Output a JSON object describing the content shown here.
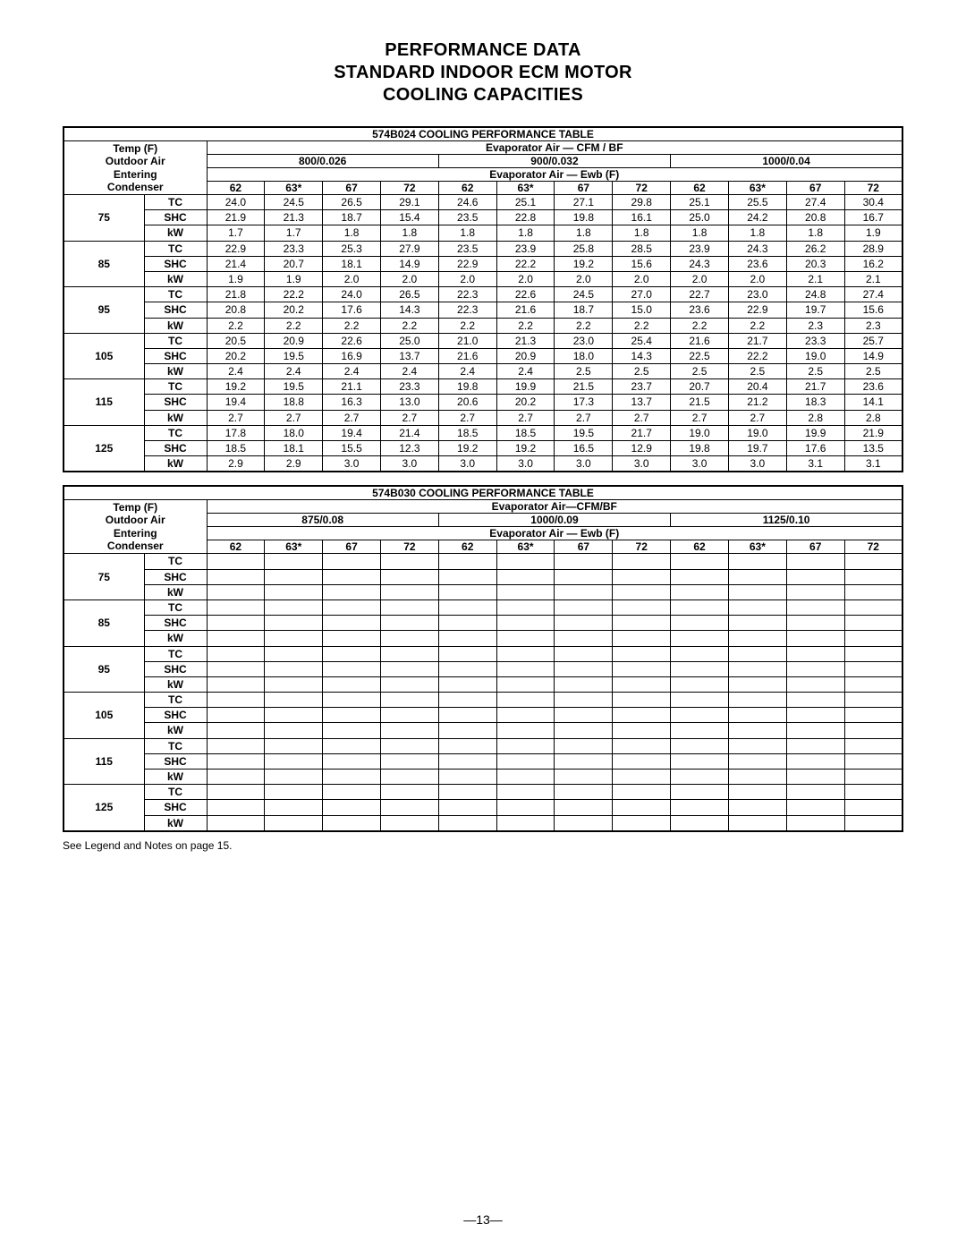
{
  "title_lines": [
    "PERFORMANCE DATA",
    "STANDARD INDOOR ECM MOTOR",
    "COOLING CAPACITIES"
  ],
  "footnote": "See Legend and Notes on page 15.",
  "page_number": "—13—",
  "metrics": [
    "TC",
    "SHC",
    "kW"
  ],
  "ewb_cols": [
    "62",
    "63*",
    "67",
    "72"
  ],
  "header_labels": {
    "temp_block": "Temp (F)\nOutdoor Air\nEntering\nCondenser",
    "evap_cfm": "Evaporator Air — CFM / BF",
    "evap_cfm2": "Evaporator Air—CFM/BF",
    "evap_ewb": "Evaporator Air — Ewb (F)"
  },
  "table1": {
    "title": "574B024 COOLING PERFORMANCE TABLE",
    "cfm": [
      "800/0.026",
      "900/0.032",
      "1000/0.04"
    ],
    "temps": [
      "75",
      "85",
      "95",
      "105",
      "115",
      "125"
    ],
    "data": {
      "75": {
        "TC": [
          "24.0",
          "24.5",
          "26.5",
          "29.1",
          "24.6",
          "25.1",
          "27.1",
          "29.8",
          "25.1",
          "25.5",
          "27.4",
          "30.4"
        ],
        "SHC": [
          "21.9",
          "21.3",
          "18.7",
          "15.4",
          "23.5",
          "22.8",
          "19.8",
          "16.1",
          "25.0",
          "24.2",
          "20.8",
          "16.7"
        ],
        "kW": [
          "1.7",
          "1.7",
          "1.8",
          "1.8",
          "1.8",
          "1.8",
          "1.8",
          "1.8",
          "1.8",
          "1.8",
          "1.8",
          "1.9"
        ]
      },
      "85": {
        "TC": [
          "22.9",
          "23.3",
          "25.3",
          "27.9",
          "23.5",
          "23.9",
          "25.8",
          "28.5",
          "23.9",
          "24.3",
          "26.2",
          "28.9"
        ],
        "SHC": [
          "21.4",
          "20.7",
          "18.1",
          "14.9",
          "22.9",
          "22.2",
          "19.2",
          "15.6",
          "24.3",
          "23.6",
          "20.3",
          "16.2"
        ],
        "kW": [
          "1.9",
          "1.9",
          "2.0",
          "2.0",
          "2.0",
          "2.0",
          "2.0",
          "2.0",
          "2.0",
          "2.0",
          "2.1",
          "2.1"
        ]
      },
      "95": {
        "TC": [
          "21.8",
          "22.2",
          "24.0",
          "26.5",
          "22.3",
          "22.6",
          "24.5",
          "27.0",
          "22.7",
          "23.0",
          "24.8",
          "27.4"
        ],
        "SHC": [
          "20.8",
          "20.2",
          "17.6",
          "14.3",
          "22.3",
          "21.6",
          "18.7",
          "15.0",
          "23.6",
          "22.9",
          "19.7",
          "15.6"
        ],
        "kW": [
          "2.2",
          "2.2",
          "2.2",
          "2.2",
          "2.2",
          "2.2",
          "2.2",
          "2.2",
          "2.2",
          "2.2",
          "2.3",
          "2.3"
        ]
      },
      "105": {
        "TC": [
          "20.5",
          "20.9",
          "22.6",
          "25.0",
          "21.0",
          "21.3",
          "23.0",
          "25.4",
          "21.6",
          "21.7",
          "23.3",
          "25.7"
        ],
        "SHC": [
          "20.2",
          "19.5",
          "16.9",
          "13.7",
          "21.6",
          "20.9",
          "18.0",
          "14.3",
          "22.5",
          "22.2",
          "19.0",
          "14.9"
        ],
        "kW": [
          "2.4",
          "2.4",
          "2.4",
          "2.4",
          "2.4",
          "2.4",
          "2.5",
          "2.5",
          "2.5",
          "2.5",
          "2.5",
          "2.5"
        ]
      },
      "115": {
        "TC": [
          "19.2",
          "19.5",
          "21.1",
          "23.3",
          "19.8",
          "19.9",
          "21.5",
          "23.7",
          "20.7",
          "20.4",
          "21.7",
          "23.6"
        ],
        "SHC": [
          "19.4",
          "18.8",
          "16.3",
          "13.0",
          "20.6",
          "20.2",
          "17.3",
          "13.7",
          "21.5",
          "21.2",
          "18.3",
          "14.1"
        ],
        "kW": [
          "2.7",
          "2.7",
          "2.7",
          "2.7",
          "2.7",
          "2.7",
          "2.7",
          "2.7",
          "2.7",
          "2.7",
          "2.8",
          "2.8"
        ]
      },
      "125": {
        "TC": [
          "17.8",
          "18.0",
          "19.4",
          "21.4",
          "18.5",
          "18.5",
          "19.5",
          "21.7",
          "19.0",
          "19.0",
          "19.9",
          "21.9"
        ],
        "SHC": [
          "18.5",
          "18.1",
          "15.5",
          "12.3",
          "19.2",
          "19.2",
          "16.5",
          "12.9",
          "19.8",
          "19.7",
          "17.6",
          "13.5"
        ],
        "kW": [
          "2.9",
          "2.9",
          "3.0",
          "3.0",
          "3.0",
          "3.0",
          "3.0",
          "3.0",
          "3.0",
          "3.0",
          "3.1",
          "3.1"
        ]
      }
    }
  },
  "table2": {
    "title": "574B030 COOLING PERFORMANCE TABLE",
    "cfm": [
      "875/0.08",
      "1000/0.09",
      "1125/0.10"
    ],
    "temps": [
      "75",
      "85",
      "95",
      "105",
      "115",
      "125"
    ]
  }
}
